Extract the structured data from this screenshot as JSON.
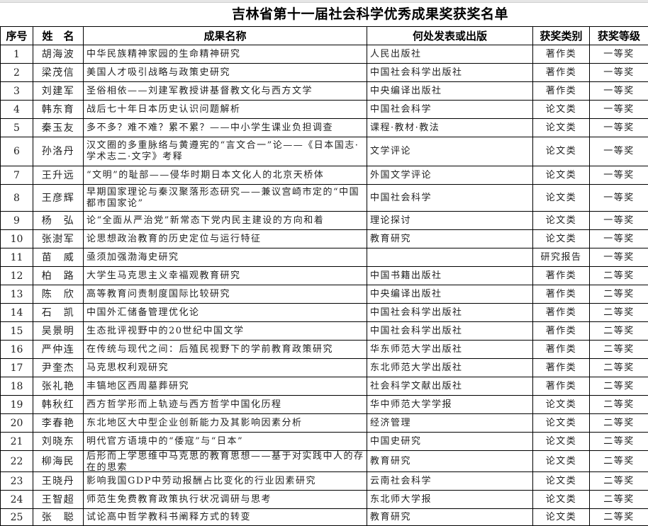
{
  "title": "吉林省第十一届社会科学优秀成果奖获奖名单",
  "headers": [
    "序号",
    "姓　名",
    "成果名称",
    "何处发表或出版",
    "获奖类别",
    "获奖等级"
  ],
  "rows": [
    {
      "no": "1",
      "name": "胡海波",
      "title": "中华民族精神家园的生命精神研究",
      "pub": "人民出版社",
      "cat": "著作类",
      "level": "一等奖"
    },
    {
      "no": "2",
      "name": "梁茂信",
      "title": "美国人才吸引战略与政策史研究",
      "pub": "中国社会科学出版社",
      "cat": "著作类",
      "level": "一等奖"
    },
    {
      "no": "3",
      "name": "刘建军",
      "title": "圣俗相依——刘建军教授讲基督教文化与西方文学",
      "pub": "中央编译出版社",
      "cat": "著作类",
      "level": "一等奖"
    },
    {
      "no": "4",
      "name": "韩东育",
      "title": "战后七十年日本历史认识问题解析",
      "pub": "中国社会科学",
      "cat": "论文类",
      "level": "一等奖"
    },
    {
      "no": "5",
      "name": "秦玉友",
      "title": "多不多？难不难？累不累？——中小学生课业负担调查",
      "pub": "课程·教材·教法",
      "cat": "论文类",
      "level": "一等奖"
    },
    {
      "no": "6",
      "name": "孙洛丹",
      "title": "汉文圈的多重脉络与黄遵宪的“言文合一”论——《日本国志·学术志二·文字》考释",
      "pub": "文学评论",
      "cat": "论文类",
      "level": "一等奖"
    },
    {
      "no": "7",
      "name": "王升远",
      "title": "“文明”的耻部——侵华时期日本文化人的北京天桥体",
      "pub": "外国文学评论",
      "cat": "论文类",
      "level": "一等奖"
    },
    {
      "no": "8",
      "name": "王彦辉",
      "title": "早期国家理论与秦汉聚落形态研究——兼议宫崎市定的“中国都市国家论”",
      "pub": "中国社会科学",
      "cat": "论文类",
      "level": "一等奖"
    },
    {
      "no": "9",
      "name": "杨　弘",
      "title": "论“全面从严治党”新常态下党内民主建设的方向和着",
      "pub": "理论探讨",
      "cat": "论文类",
      "level": "一等奖"
    },
    {
      "no": "10",
      "name": "张澍军",
      "title": "论思想政治教育的历史定位与运行特征",
      "pub": "教育研究",
      "cat": "论文类",
      "level": "一等奖"
    },
    {
      "no": "11",
      "name": "苗　威",
      "title": "亟须加强渤海史研究",
      "pub": "",
      "cat": "研究报告",
      "level": "一等奖"
    },
    {
      "no": "12",
      "name": "柏　路",
      "title": "大学生马克思主义幸福观教育研究",
      "pub": "中国书籍出版社",
      "cat": "著作类",
      "level": "二等奖"
    },
    {
      "no": "13",
      "name": "陈　欣",
      "title": "高等教育问责制度国际比较研究",
      "pub": "中央编译出版社",
      "cat": "著作类",
      "level": "二等奖"
    },
    {
      "no": "14",
      "name": "石　凯",
      "title": "中国外汇储备管理优化论",
      "pub": "中国社会科学出版社",
      "cat": "著作类",
      "level": "二等奖"
    },
    {
      "no": "15",
      "name": "吴景明",
      "title": "生态批评视野中的20世纪中国文学",
      "pub": "中国社会科学出版社",
      "cat": "著作类",
      "level": "二等奖"
    },
    {
      "no": "16",
      "name": "严仲连",
      "title": "在传统与现代之间：后殖民视野下的学前教育政策研究",
      "pub": "华东师范大学出版社",
      "cat": "著作类",
      "level": "二等奖"
    },
    {
      "no": "17",
      "name": "尹奎杰",
      "title": "马克思权利观研究",
      "pub": "东北师范大学出版社",
      "cat": "著作类",
      "level": "二等奖"
    },
    {
      "no": "18",
      "name": "张礼艳",
      "title": "丰镐地区西周墓葬研究",
      "pub": "社会科学文献出版社",
      "cat": "著作类",
      "level": "二等奖"
    },
    {
      "no": "19",
      "name": "韩秋红",
      "title": "西方哲学形而上轨迹与西方哲学中国化历程",
      "pub": "华中师范大学学报",
      "cat": "论文类",
      "level": "二等奖"
    },
    {
      "no": "20",
      "name": "李春艳",
      "title": "东北地区大中型企业创新能力及其影响因素分析",
      "pub": "经济管理",
      "cat": "论文类",
      "level": "二等奖"
    },
    {
      "no": "21",
      "name": "刘晓东",
      "title": "明代官方语境中的“倭寇”与“日本”",
      "pub": "中国史研究",
      "cat": "论文类",
      "level": "二等奖"
    },
    {
      "no": "22",
      "name": "柳海民",
      "title": "后形而上学思维中马克思的教育思想——基于对实践中人的存在的思索",
      "pub": "教育研究",
      "cat": "论文类",
      "level": "二等奖"
    },
    {
      "no": "23",
      "name": "王晓丹",
      "title": "影响我国GDP中劳动报酬占比变化的行业因素研究",
      "pub": "云南社会科学",
      "cat": "论文类",
      "level": "二等奖"
    },
    {
      "no": "24",
      "name": "王智超",
      "title": "师范生免费教育政策执行状况调研与思考",
      "pub": "东北师大学报",
      "cat": "论文类",
      "level": "二等奖"
    },
    {
      "no": "25",
      "name": "张　聪",
      "title": "试论高中哲学教科书阐释方式的转变",
      "pub": "教育研究",
      "cat": "论文类",
      "level": "二等奖"
    }
  ]
}
